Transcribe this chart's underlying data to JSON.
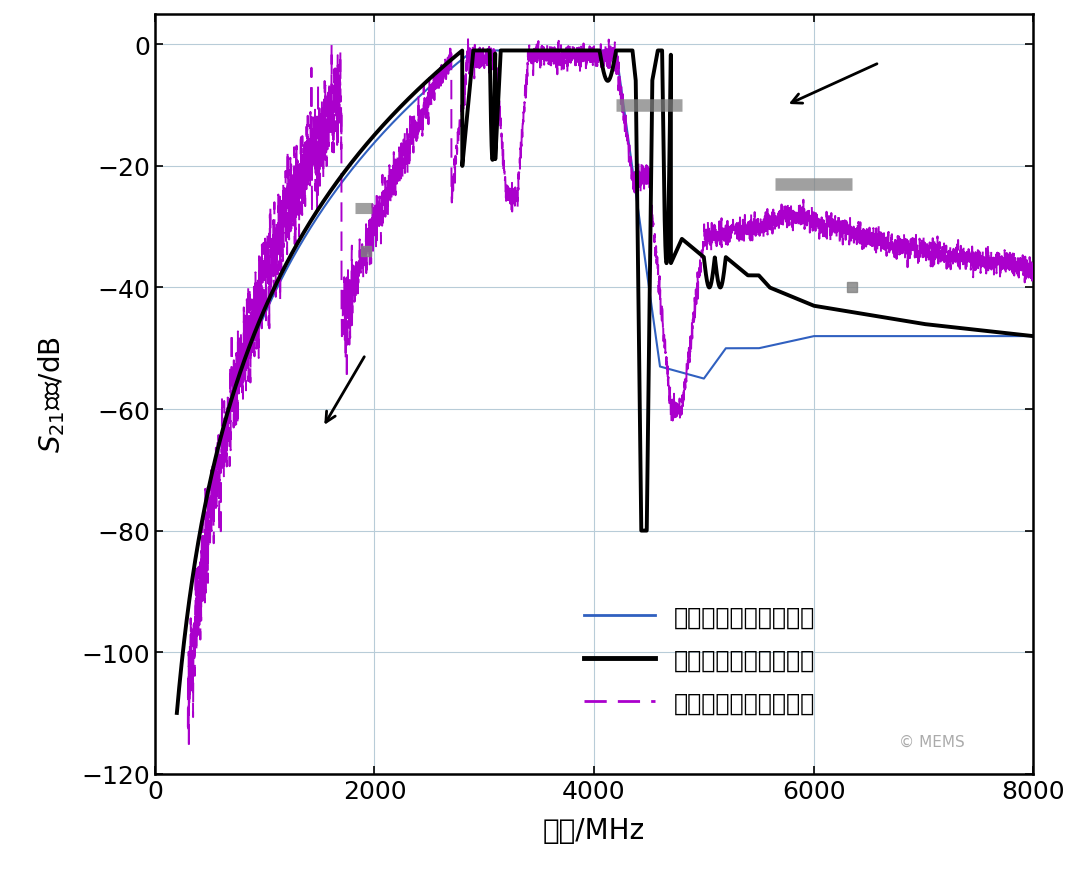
{
  "title": "",
  "xlabel": "频率/MHz",
  "ylabel": "$S_{21}$参数/dB",
  "xlim": [
    0,
    8000
  ],
  "ylim": [
    -120,
    5
  ],
  "xticks": [
    0,
    2000,
    4000,
    6000,
    8000
  ],
  "yticks": [
    0,
    -20,
    -40,
    -60,
    -80,
    -100,
    -120
  ],
  "grid_color": "#b8ccd8",
  "background_color": "#ffffff",
  "legend_entries": [
    "设计的滤波器频率响应",
    "仿真的滤波器频率响应",
    "测量的滤波器频率响应"
  ],
  "line1_color": "#3060c0",
  "line2_color": "#000000",
  "line3_color": "#aa00cc",
  "watermark": "MEMS"
}
